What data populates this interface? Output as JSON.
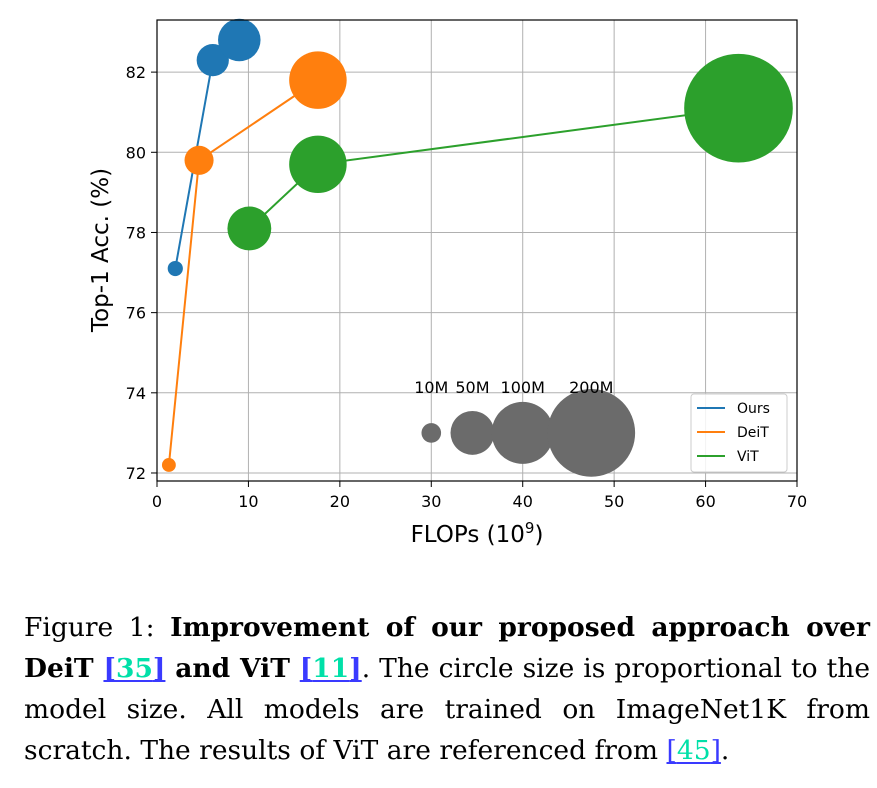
{
  "chart_data": {
    "type": "scatter",
    "xlabel": "FLOPs (10",
    "xlabel_sup": "9",
    "xlabel_close": ")",
    "ylabel": "Top-1 Acc. (%)",
    "xlim": [
      0,
      70
    ],
    "ylim": [
      71.8,
      83.3
    ],
    "xticks": [
      0,
      10,
      20,
      30,
      40,
      50,
      60,
      70
    ],
    "yticks": [
      72,
      74,
      76,
      78,
      80,
      82
    ],
    "grid": true,
    "legend_position": "bottom-right",
    "series": [
      {
        "name": "Ours",
        "color": "#1f77b4",
        "points": [
          {
            "x": 2.0,
            "y": 77.1,
            "params_m": 6
          },
          {
            "x": 6.1,
            "y": 82.3,
            "params_m": 27
          },
          {
            "x": 9.0,
            "y": 82.8,
            "params_m": 47
          }
        ]
      },
      {
        "name": "DeiT",
        "color": "#ff7f0e",
        "points": [
          {
            "x": 1.3,
            "y": 72.2,
            "params_m": 5
          },
          {
            "x": 4.6,
            "y": 79.8,
            "params_m": 22
          },
          {
            "x": 17.6,
            "y": 81.8,
            "params_m": 86
          }
        ]
      },
      {
        "name": "ViT",
        "color": "#2ca02c",
        "points": [
          {
            "x": 10.1,
            "y": 78.1,
            "params_m": 50
          },
          {
            "x": 17.6,
            "y": 79.7,
            "params_m": 86
          },
          {
            "x": 63.6,
            "y": 81.1,
            "params_m": 307
          }
        ]
      }
    ],
    "size_legend": {
      "color": "#6b6b6b",
      "y": 73.0,
      "items": [
        {
          "label": "10M",
          "params_m": 10,
          "x": 30.0
        },
        {
          "label": "50M",
          "params_m": 50,
          "x": 34.5
        },
        {
          "label": "100M",
          "params_m": 100,
          "x": 40.0
        },
        {
          "label": "200M",
          "params_m": 200,
          "x": 47.5
        }
      ]
    }
  },
  "caption": {
    "prefix": "Figure 1: ",
    "bold_part1": "Improvement of our proposed approach over DeiT ",
    "ref1": "35",
    "bold_part2": " and ViT ",
    "ref2": "11",
    "text1": ". The circle size is proportional to the model size. All models are trained on ImageNet1K from scratch. The results of ViT are referenced from ",
    "ref3": "45",
    "text2": "."
  }
}
